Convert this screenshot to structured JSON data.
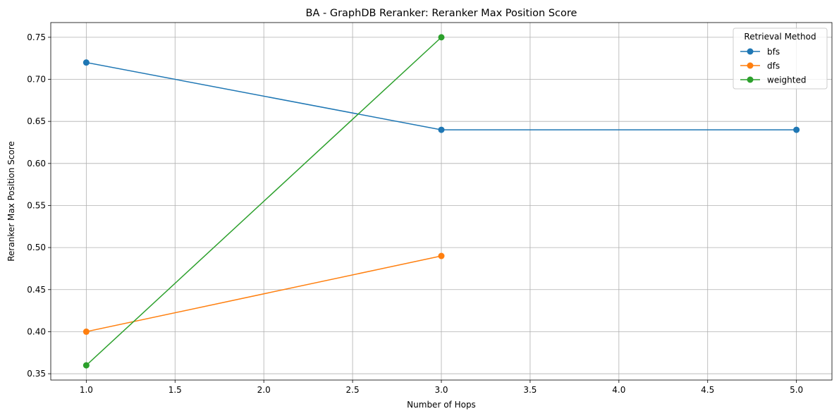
{
  "chart_data": {
    "type": "line",
    "title": "BA - GraphDB Reranker: Reranker Max Position Score",
    "xlabel": "Number of Hops",
    "ylabel": "Reranker Max Position Score",
    "xlim": [
      0.8,
      5.2
    ],
    "ylim": [
      0.3425,
      0.7675
    ],
    "x_ticks": [
      1.0,
      1.5,
      2.0,
      2.5,
      3.0,
      3.5,
      4.0,
      4.5,
      5.0
    ],
    "x_tick_labels": [
      "1.0",
      "1.5",
      "2.0",
      "2.5",
      "3.0",
      "3.5",
      "4.0",
      "4.5",
      "5.0"
    ],
    "y_ticks": [
      0.35,
      0.4,
      0.45,
      0.5,
      0.55,
      0.6,
      0.65,
      0.7,
      0.75
    ],
    "y_tick_labels": [
      "0.35",
      "0.40",
      "0.45",
      "0.50",
      "0.55",
      "0.60",
      "0.65",
      "0.70",
      "0.75"
    ],
    "grid": true,
    "legend_title": "Retrieval Method",
    "legend_position": "top-right",
    "series": [
      {
        "name": "bfs",
        "color": "#1f77b4",
        "x": [
          1,
          3,
          5
        ],
        "y": [
          0.72,
          0.64,
          0.64
        ]
      },
      {
        "name": "dfs",
        "color": "#ff7f0e",
        "x": [
          1,
          3
        ],
        "y": [
          0.4,
          0.49
        ]
      },
      {
        "name": "weighted",
        "color": "#2ca02c",
        "x": [
          1,
          3
        ],
        "y": [
          0.36,
          0.75
        ]
      }
    ]
  }
}
